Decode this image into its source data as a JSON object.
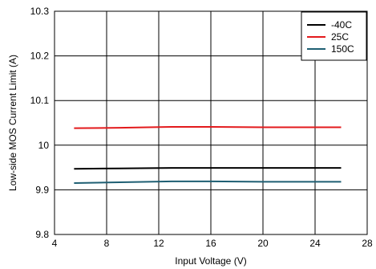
{
  "chart_data": {
    "type": "line",
    "title": "",
    "xlabel": "Input Voltage (V)",
    "ylabel": "Low-side MOS Current Limit (A)",
    "xlim": [
      4,
      28
    ],
    "ylim": [
      9.8,
      10.3
    ],
    "xticks": [
      4,
      8,
      12,
      16,
      20,
      24,
      28
    ],
    "xtick_labels": [
      "4",
      "8",
      "12",
      "16",
      "20",
      "24",
      "28"
    ],
    "yticks": [
      9.8,
      9.9,
      10,
      10.1,
      10.2,
      10.3
    ],
    "ytick_labels": [
      "9.8",
      "9.9",
      "10",
      "10.1",
      "10.2",
      "10.3"
    ],
    "grid": true,
    "legend_position": "top-right",
    "series": [
      {
        "name": "-40C",
        "color": "#000000",
        "x": [
          5.5,
          9,
          13,
          16,
          20,
          24,
          26
        ],
        "y": [
          9.947,
          9.948,
          9.949,
          9.949,
          9.949,
          9.949,
          9.949
        ]
      },
      {
        "name": "25C",
        "color": "#e31a1c",
        "x": [
          5.5,
          9,
          13,
          16,
          20,
          24,
          26
        ],
        "y": [
          10.038,
          10.039,
          10.041,
          10.041,
          10.04,
          10.04,
          10.04
        ]
      },
      {
        "name": "150C",
        "color": "#1f5f73",
        "x": [
          5.5,
          9,
          13,
          16,
          20,
          24,
          26
        ],
        "y": [
          9.915,
          9.917,
          9.919,
          9.919,
          9.918,
          9.918,
          9.918
        ]
      }
    ]
  }
}
